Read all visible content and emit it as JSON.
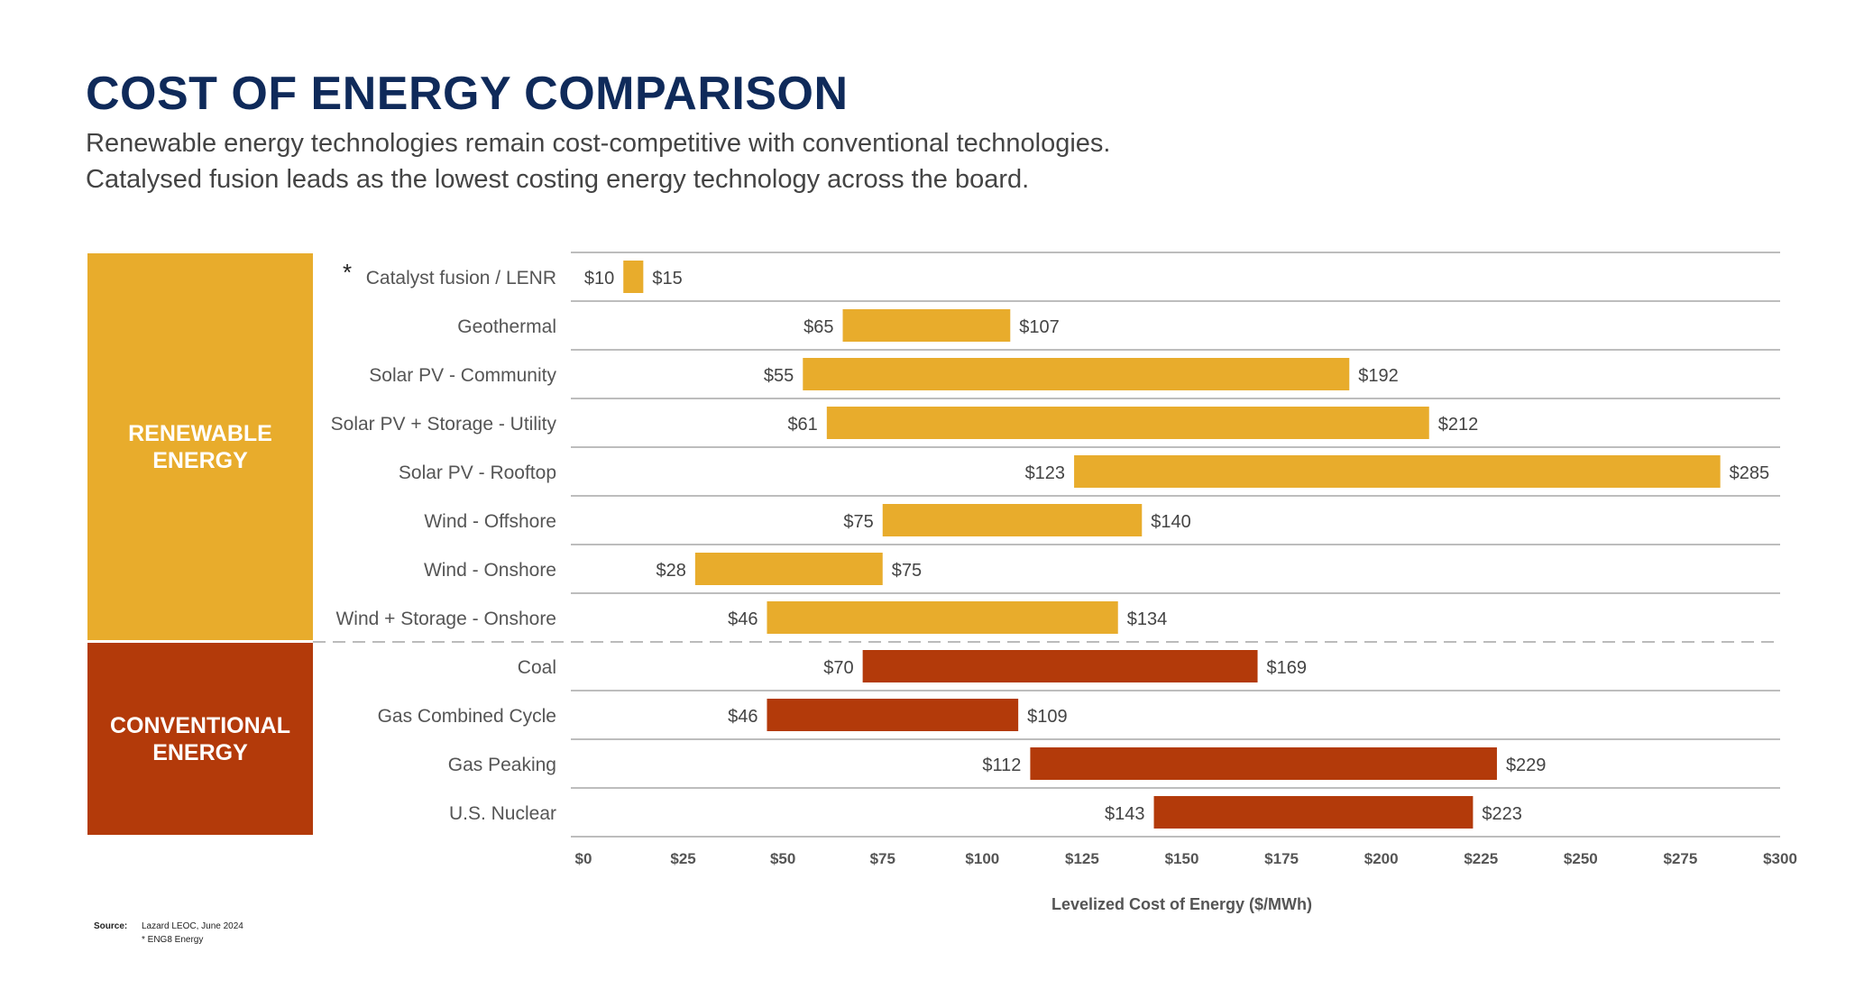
{
  "header": {
    "title": "COST OF ENERGY COMPARISON",
    "subtitle_line1": "Renewable energy technologies remain cost-competitive with conventional technologies.",
    "subtitle_line2": "Catalysed fusion leads as the lowest costing energy technology across the board."
  },
  "categories": {
    "renewable": {
      "label_line1": "RENEWABLE",
      "label_line2": "ENERGY",
      "color": "#e8ac2c"
    },
    "conventional": {
      "label_line1": "CONVENTIONAL",
      "label_line2": "ENERGY",
      "color": "#b33a0a"
    }
  },
  "chart_data": {
    "type": "bar",
    "orientation": "horizontal-range",
    "xlabel": "Levelized Cost of Energy ($/MWh)",
    "xlim": [
      0,
      300
    ],
    "xticks": [
      "$0",
      "$25",
      "$50",
      "$75",
      "$100",
      "$125",
      "$150",
      "$175",
      "$200",
      "$225",
      "$250",
      "$275",
      "$300"
    ],
    "xtick_values": [
      0,
      25,
      50,
      75,
      100,
      125,
      150,
      175,
      200,
      225,
      250,
      275,
      300
    ],
    "grid": "horizontal row separators",
    "rows": [
      {
        "label": "Catalyst fusion / LENR",
        "marker": "*",
        "low": 10,
        "high": 15,
        "low_label": "$10",
        "high_label": "$15",
        "group": "renewable"
      },
      {
        "label": "Geothermal",
        "low": 65,
        "high": 107,
        "low_label": "$65",
        "high_label": "$107",
        "group": "renewable"
      },
      {
        "label": "Solar PV - Community",
        "low": 55,
        "high": 192,
        "low_label": "$55",
        "high_label": "$192",
        "group": "renewable"
      },
      {
        "label": "Solar PV + Storage - Utility",
        "low": 61,
        "high": 212,
        "low_label": "$61",
        "high_label": "$212",
        "group": "renewable"
      },
      {
        "label": "Solar PV - Rooftop",
        "low": 123,
        "high": 285,
        "low_label": "$123",
        "high_label": "$285",
        "group": "renewable"
      },
      {
        "label": "Wind - Offshore",
        "low": 75,
        "high": 140,
        "low_label": "$75",
        "high_label": "$140",
        "group": "renewable"
      },
      {
        "label": "Wind - Onshore",
        "low": 28,
        "high": 75,
        "low_label": "$28",
        "high_label": "$75",
        "group": "renewable"
      },
      {
        "label": "Wind + Storage - Onshore",
        "low": 46,
        "high": 134,
        "low_label": "$46",
        "high_label": "$134",
        "group": "renewable"
      },
      {
        "label": "Coal",
        "low": 70,
        "high": 169,
        "low_label": "$70",
        "high_label": "$169",
        "group": "conventional"
      },
      {
        "label": "Gas Combined Cycle",
        "low": 46,
        "high": 109,
        "low_label": "$46",
        "high_label": "$109",
        "group": "conventional"
      },
      {
        "label": "Gas Peaking",
        "low": 112,
        "high": 229,
        "low_label": "$112",
        "high_label": "$229",
        "group": "conventional"
      },
      {
        "label": "U.S. Nuclear",
        "low": 143,
        "high": 223,
        "low_label": "$143",
        "high_label": "$223",
        "group": "conventional"
      }
    ]
  },
  "footer": {
    "source_label": "Source:",
    "source_text": "Lazard LEOC,  June 2024",
    "note": "* ENG8  Energy"
  }
}
